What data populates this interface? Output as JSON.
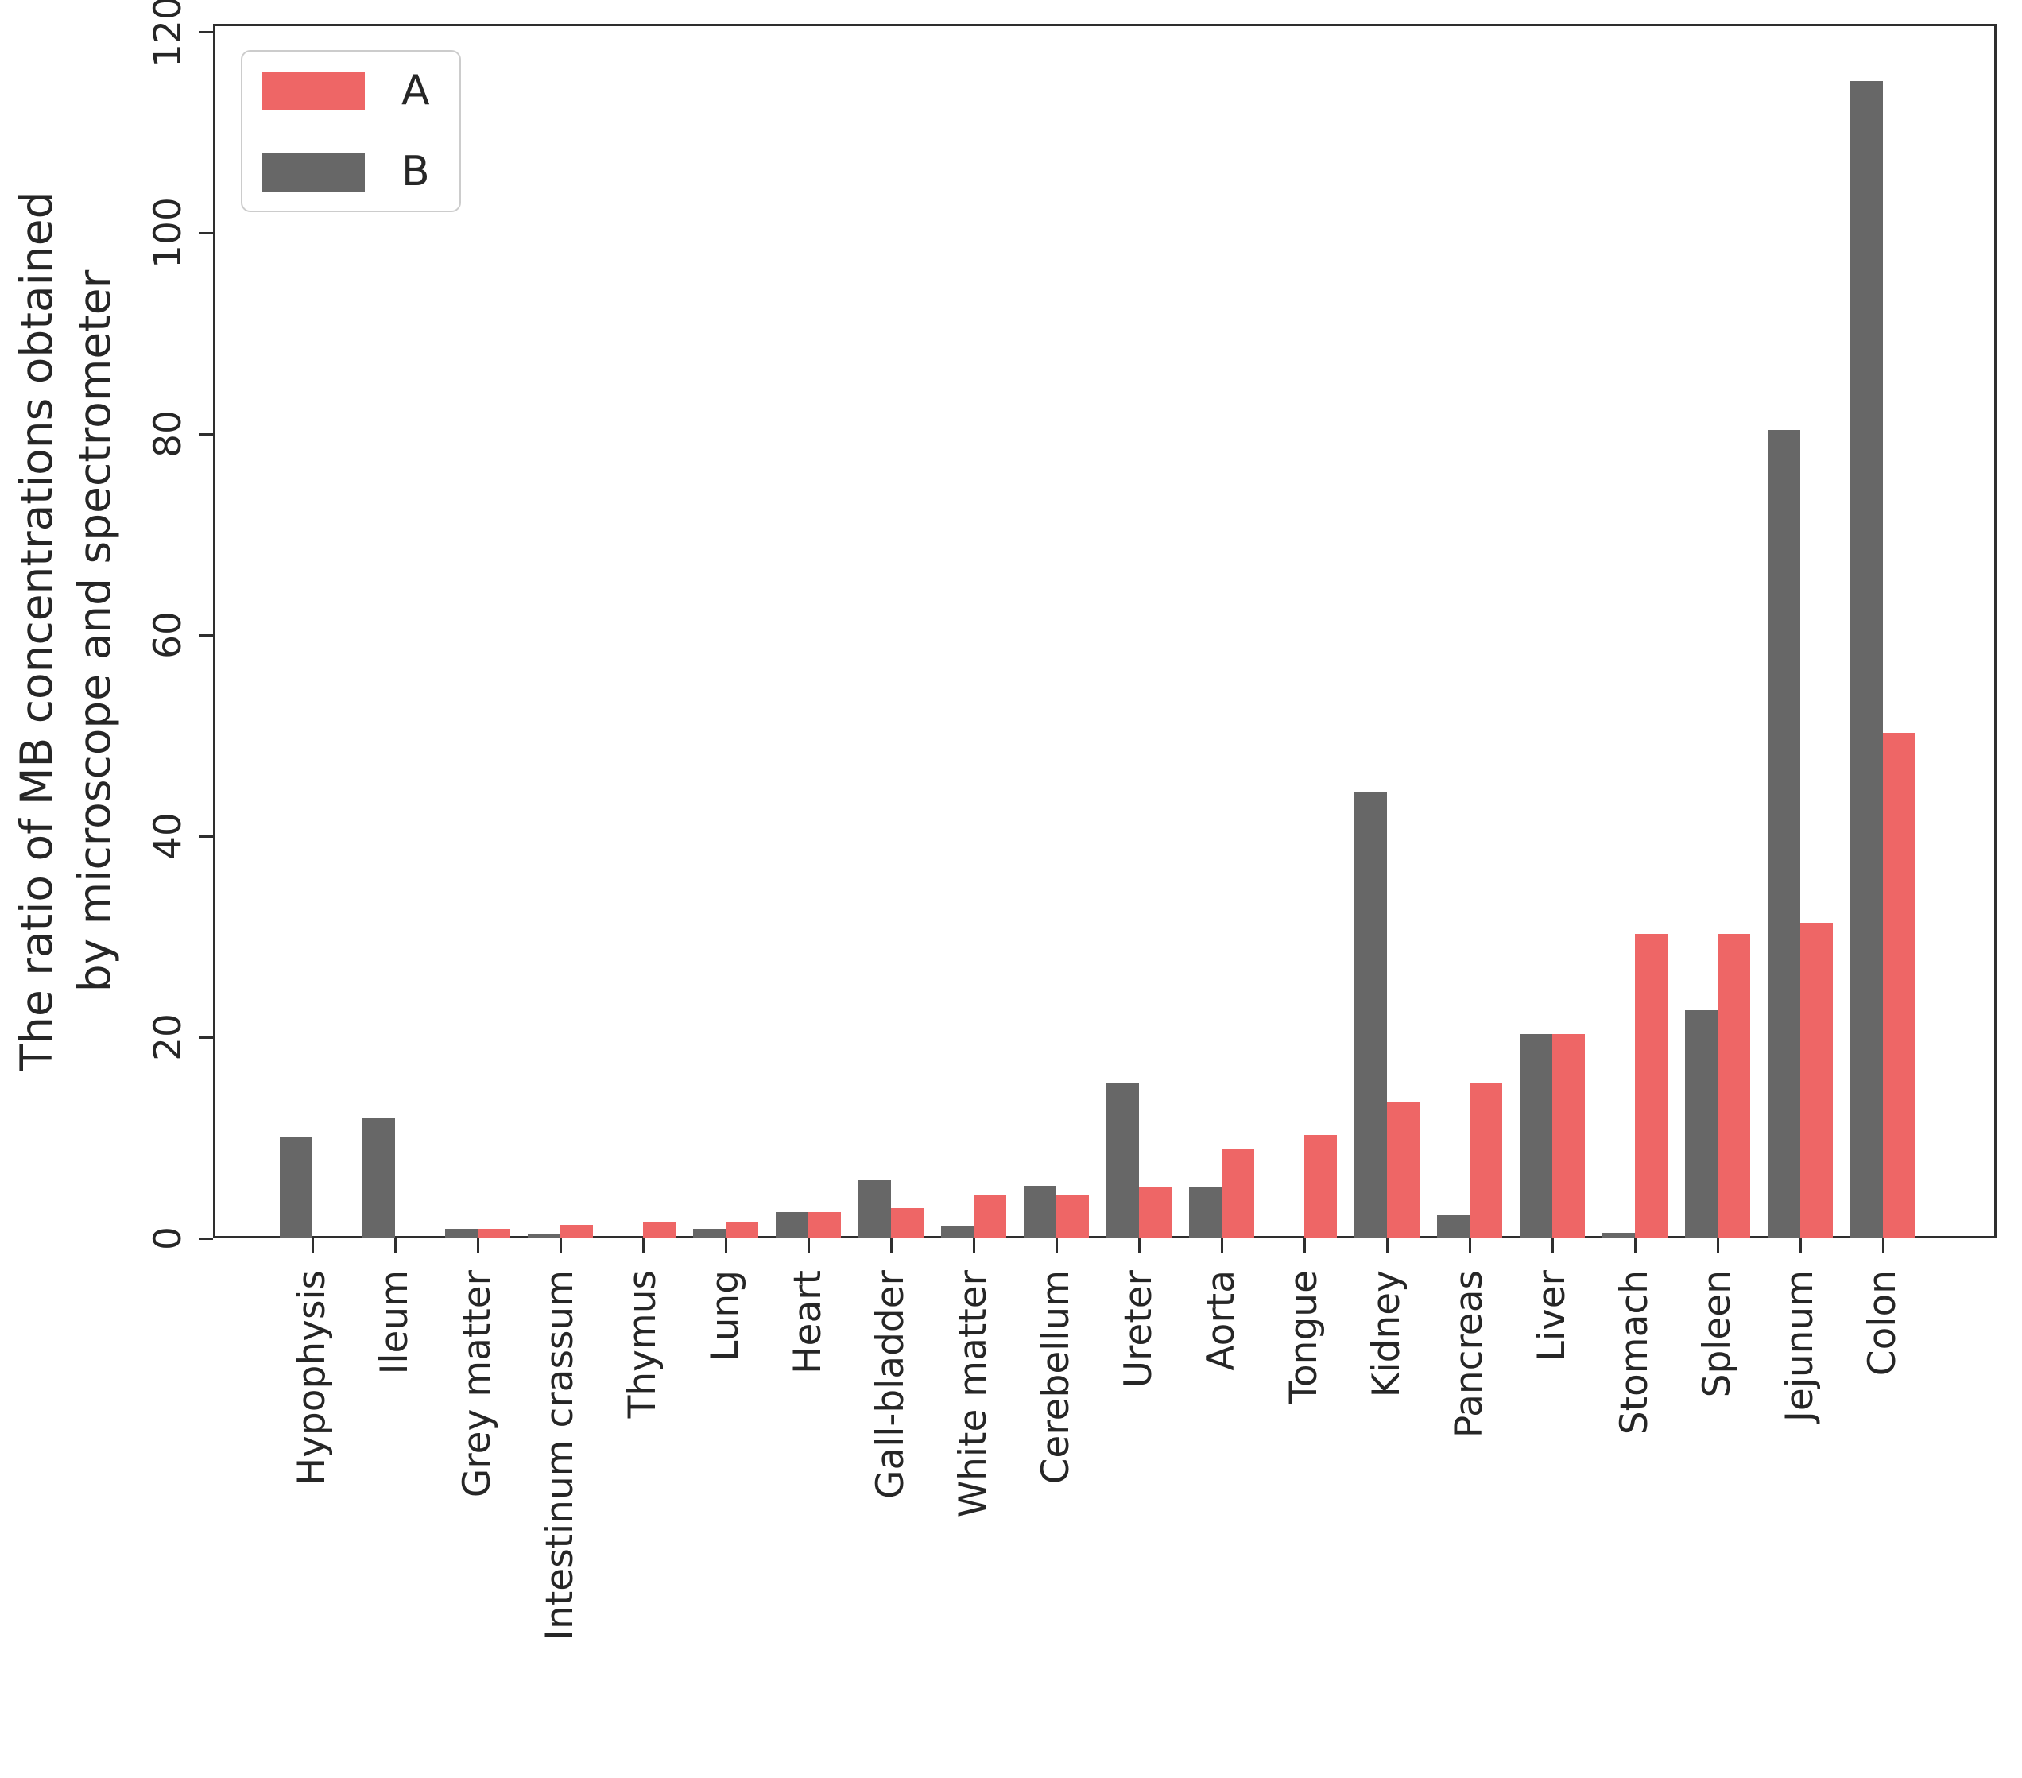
{
  "chart_data": {
    "type": "bar",
    "title": "",
    "xlabel": "",
    "ylabel": "The ratio of MB concentrations obtained by microscope and spectrometer",
    "ylabel_lines": [
      "The ratio of MB concentrations obtained",
      "by microscope and spectrometer"
    ],
    "categories": [
      "Hypophysis",
      "Ileum",
      "Grey matter",
      "Intestinum crassum",
      "Thymus",
      "Lung",
      "Heart",
      "Gall-bladder",
      "White matter",
      "Cerebellum",
      "Ureter",
      "Aorta",
      "Tongue",
      "Kidney",
      "Pancreas",
      "Liver",
      "Stomach",
      "Spleen",
      "Jejunum",
      "Colon"
    ],
    "series": [
      {
        "name": "A",
        "color": "#ee6666",
        "values": [
          0,
          0,
          0.9,
          1.3,
          1.6,
          1.6,
          2.5,
          2.9,
          4.2,
          4.2,
          5.0,
          8.8,
          10.2,
          13.4,
          15.3,
          20.2,
          30.2,
          30.2,
          31.3,
          50.2
        ]
      },
      {
        "name": "B",
        "color": "#676767",
        "values": [
          10.0,
          11.9,
          0.9,
          0.3,
          0,
          0.9,
          2.5,
          5.7,
          1.2,
          5.1,
          15.3,
          5.0,
          0,
          44.3,
          2.2,
          20.2,
          0.5,
          22.6,
          80.3,
          115.0
        ]
      }
    ],
    "bar_order_left_to_right": [
      "B",
      "A"
    ],
    "ylim": [
      0,
      120
    ],
    "yticks": [
      0,
      20,
      40,
      60,
      80,
      100,
      120
    ],
    "tick_label_rotation_deg": 90,
    "grid": false,
    "legend": {
      "position": "upper left",
      "entries": [
        "A",
        "B"
      ]
    }
  },
  "colors": {
    "series_a": "#ee6666",
    "series_b": "#676767",
    "spine": "#2e2e2e",
    "text": "#262626",
    "legend_border": "#cccccc",
    "background": "#ffffff"
  }
}
